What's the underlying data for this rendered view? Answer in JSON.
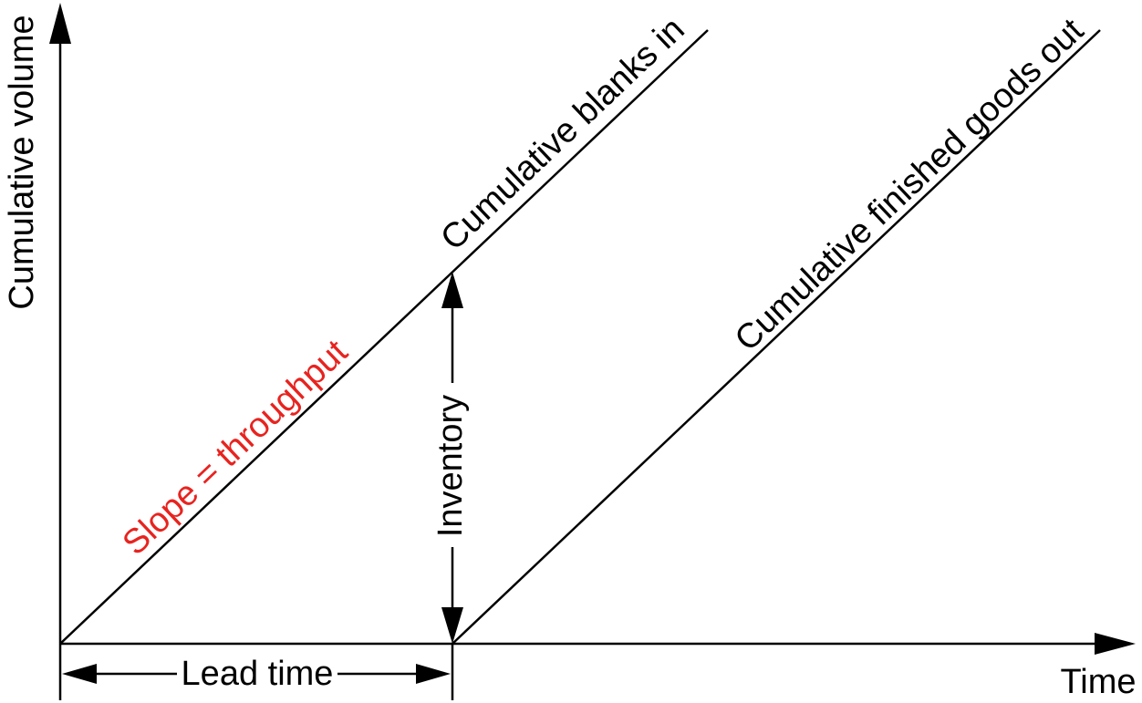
{
  "diagram": {
    "y_axis_label": "Cumulative volume",
    "x_axis_label": "Time",
    "upper_line_label": "Cumulative blanks in",
    "lower_line_label": "Cumulative finished goods out",
    "slope_label": "Slope = throughput",
    "inventory_label": "Inventory",
    "lead_time_label": "Lead time"
  },
  "colors": {
    "line": "#000000",
    "accent": "#e8231f",
    "background": "#ffffff"
  }
}
